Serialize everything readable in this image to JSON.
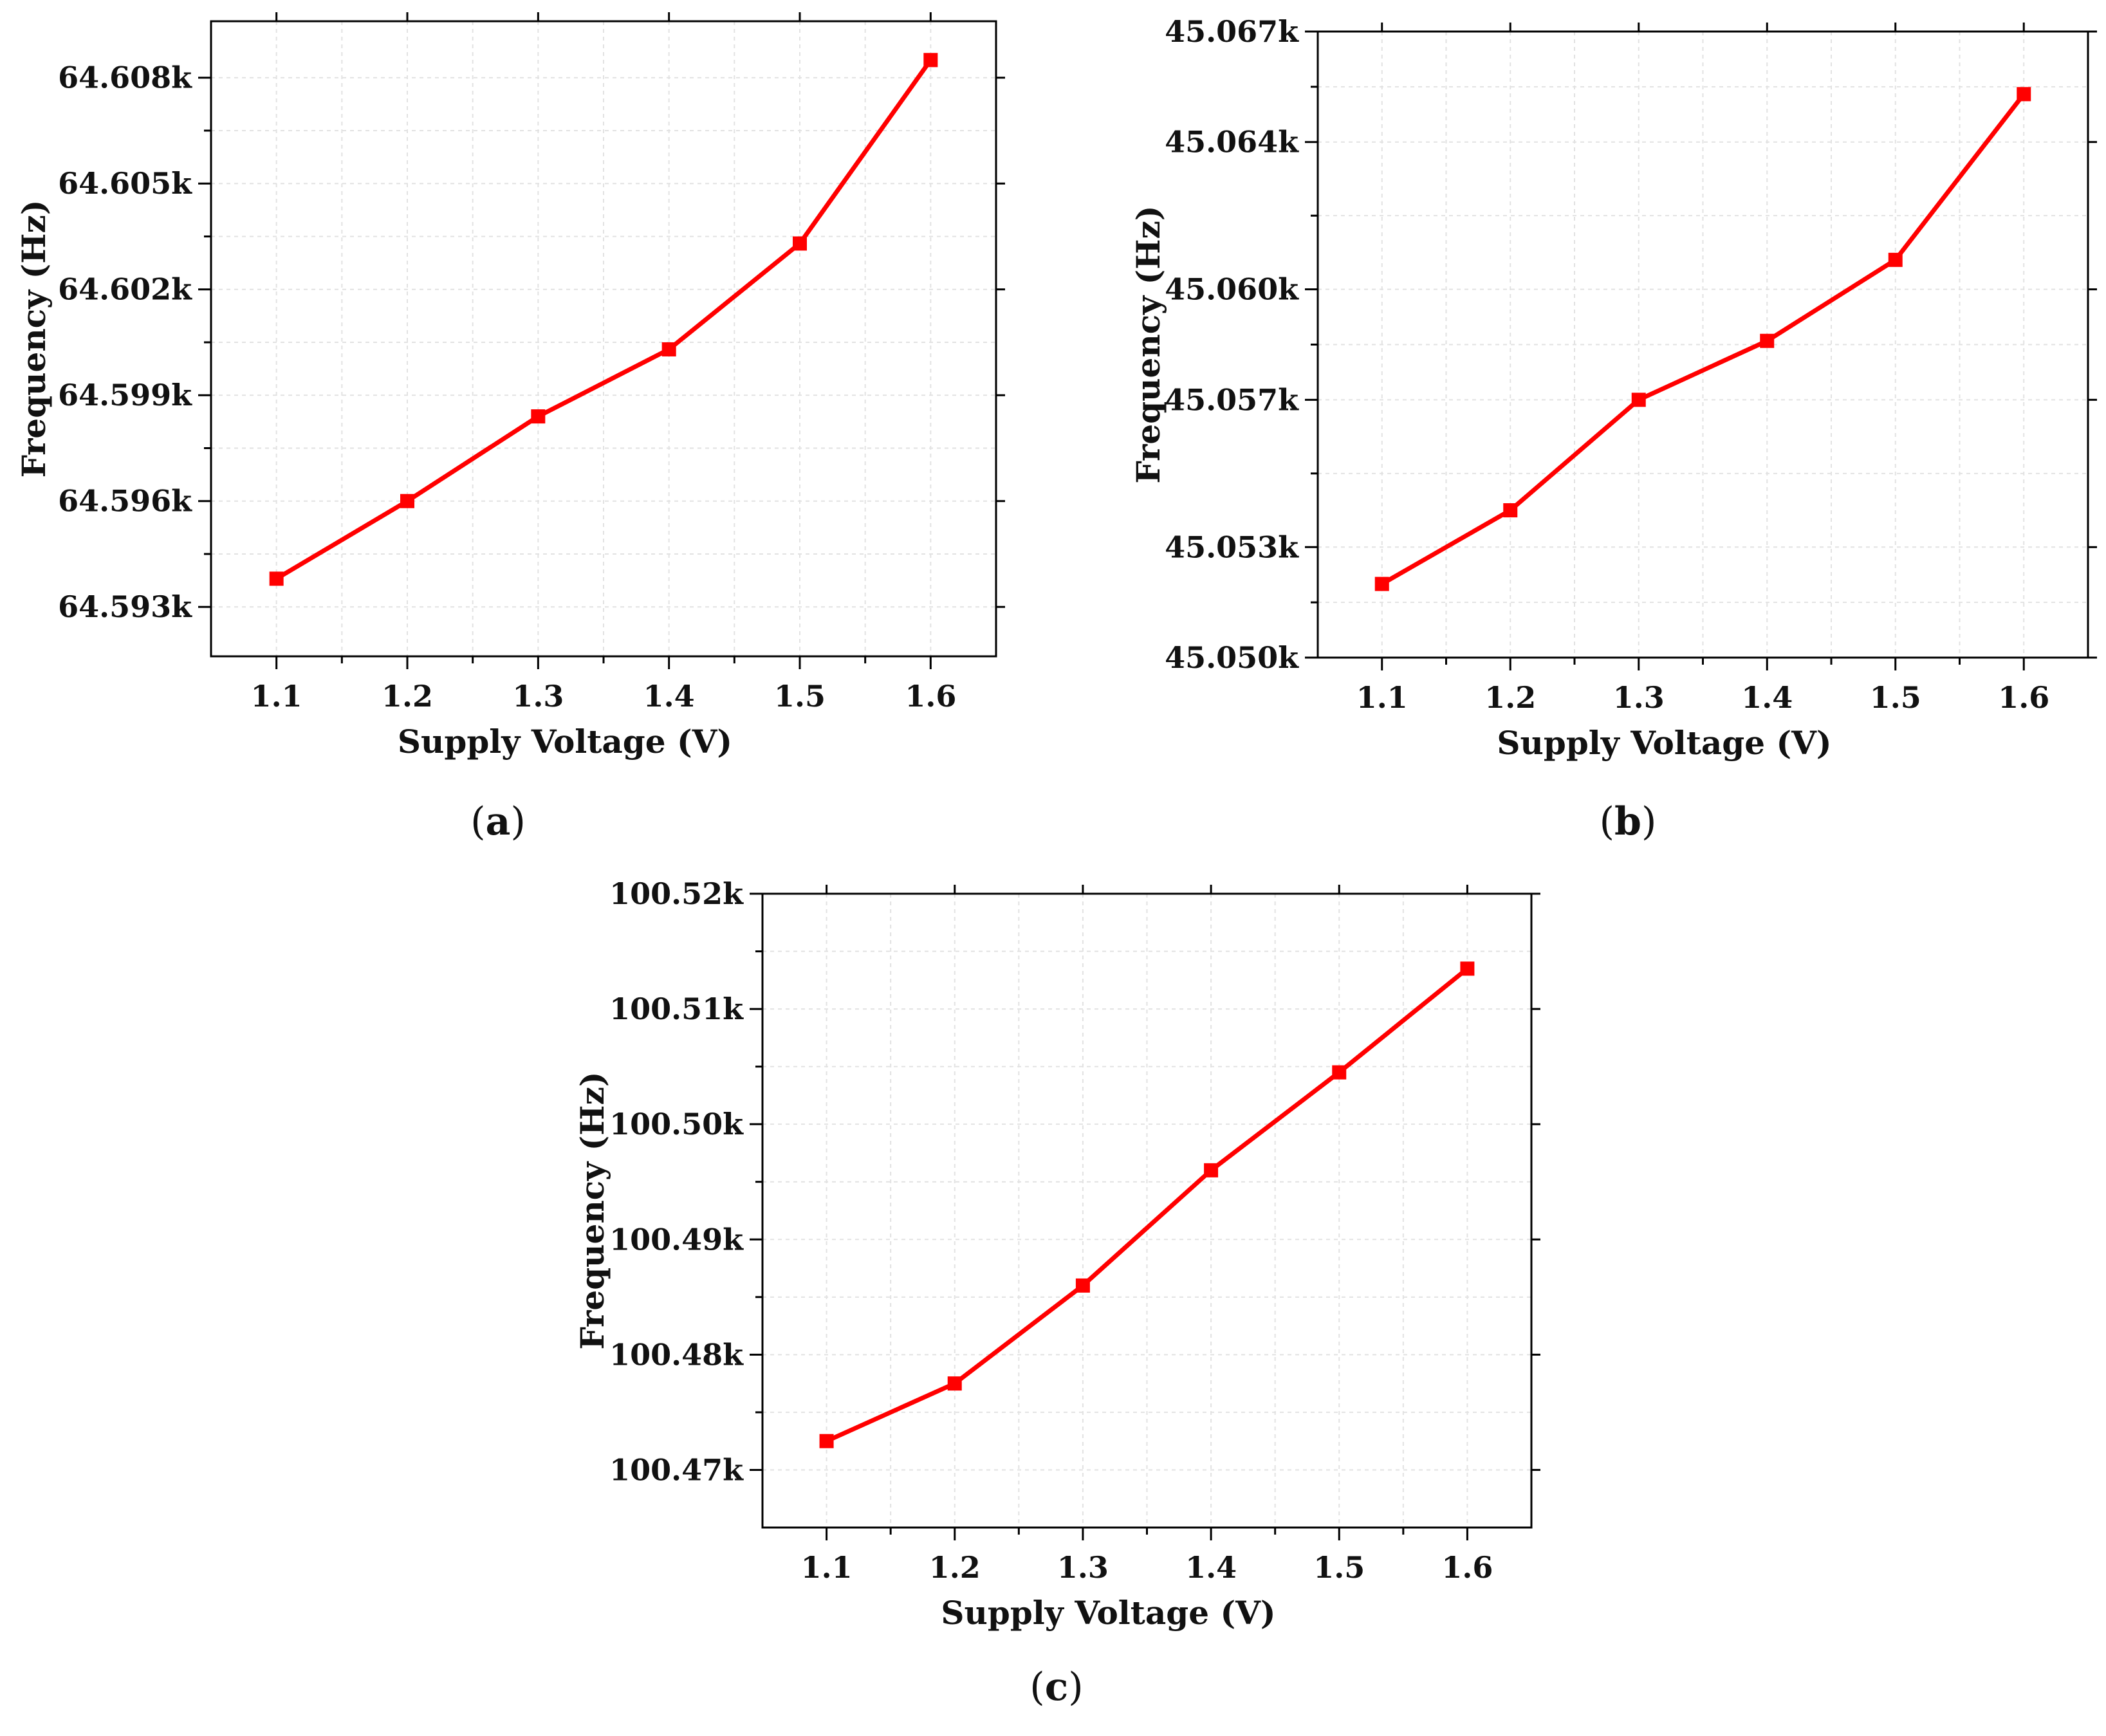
{
  "colors": {
    "series": "#ff0000",
    "axis": "#000000",
    "grid": "#e2e2e2"
  },
  "chart_data": [
    {
      "id": "a",
      "type": "line",
      "caption_letter": "a",
      "xlabel": "Supply Voltage (V)",
      "ylabel": "Frequency (Hz)",
      "xlim": [
        1.05,
        1.65
      ],
      "ylim": [
        64591.6,
        64609.6
      ],
      "x": [
        1.1,
        1.2,
        1.3,
        1.4,
        1.5,
        1.6
      ],
      "y": [
        64593.8,
        64596.0,
        64598.4,
        64600.3,
        64603.3,
        64608.5
      ],
      "xticks": [
        1.1,
        1.2,
        1.3,
        1.4,
        1.5,
        1.6
      ],
      "xtick_labels": [
        "1.1",
        "1.2",
        "1.3",
        "1.4",
        "1.5",
        "1.6"
      ],
      "yticks": [
        64593,
        64596,
        64599,
        64602,
        64605,
        64608
      ],
      "ytick_labels": [
        "64.593k",
        "64.596k",
        "64.599k",
        "64.602k",
        "64.605k",
        "64.608k"
      ],
      "marker": "square",
      "grid": true
    },
    {
      "id": "b",
      "type": "line",
      "caption_letter": "b",
      "xlabel": "Supply Voltage (V)",
      "ylabel": "Frequency (Hz)",
      "xlim": [
        1.05,
        1.65
      ],
      "ylim": [
        45050,
        45067
      ],
      "x": [
        1.1,
        1.2,
        1.3,
        1.4,
        1.5,
        1.6
      ],
      "y": [
        45052.0,
        45054.0,
        45057.0,
        45058.6,
        45060.8,
        45065.3
      ],
      "xticks": [
        1.1,
        1.2,
        1.3,
        1.4,
        1.5,
        1.6
      ],
      "xtick_labels": [
        "1.1",
        "1.2",
        "1.3",
        "1.4",
        "1.5",
        "1.6"
      ],
      "yticks": [
        45050,
        45053,
        45057,
        45060,
        45064,
        45067
      ],
      "ytick_labels": [
        "45.050k",
        "45.053k",
        "45.057k",
        "45.060k",
        "45.064k",
        "45.067k"
      ],
      "marker": "square",
      "grid": true
    },
    {
      "id": "c",
      "type": "line",
      "caption_letter": "c",
      "xlabel": "Supply Voltage (V)",
      "ylabel": "Frequency (Hz)",
      "xlim": [
        1.05,
        1.65
      ],
      "ylim": [
        100465,
        100520
      ],
      "x": [
        1.1,
        1.2,
        1.3,
        1.4,
        1.5,
        1.6
      ],
      "y": [
        100472.5,
        100477.5,
        100486.0,
        100496.0,
        100504.5,
        100513.5
      ],
      "xticks": [
        1.1,
        1.2,
        1.3,
        1.4,
        1.5,
        1.6
      ],
      "xtick_labels": [
        "1.1",
        "1.2",
        "1.3",
        "1.4",
        "1.5",
        "1.6"
      ],
      "yticks": [
        100470,
        100480,
        100490,
        100500,
        100510,
        100520
      ],
      "ytick_labels": [
        "100.47k",
        "100.48k",
        "100.49k",
        "100.50k",
        "100.51k",
        "100.52k"
      ],
      "marker": "square",
      "grid": true
    }
  ]
}
